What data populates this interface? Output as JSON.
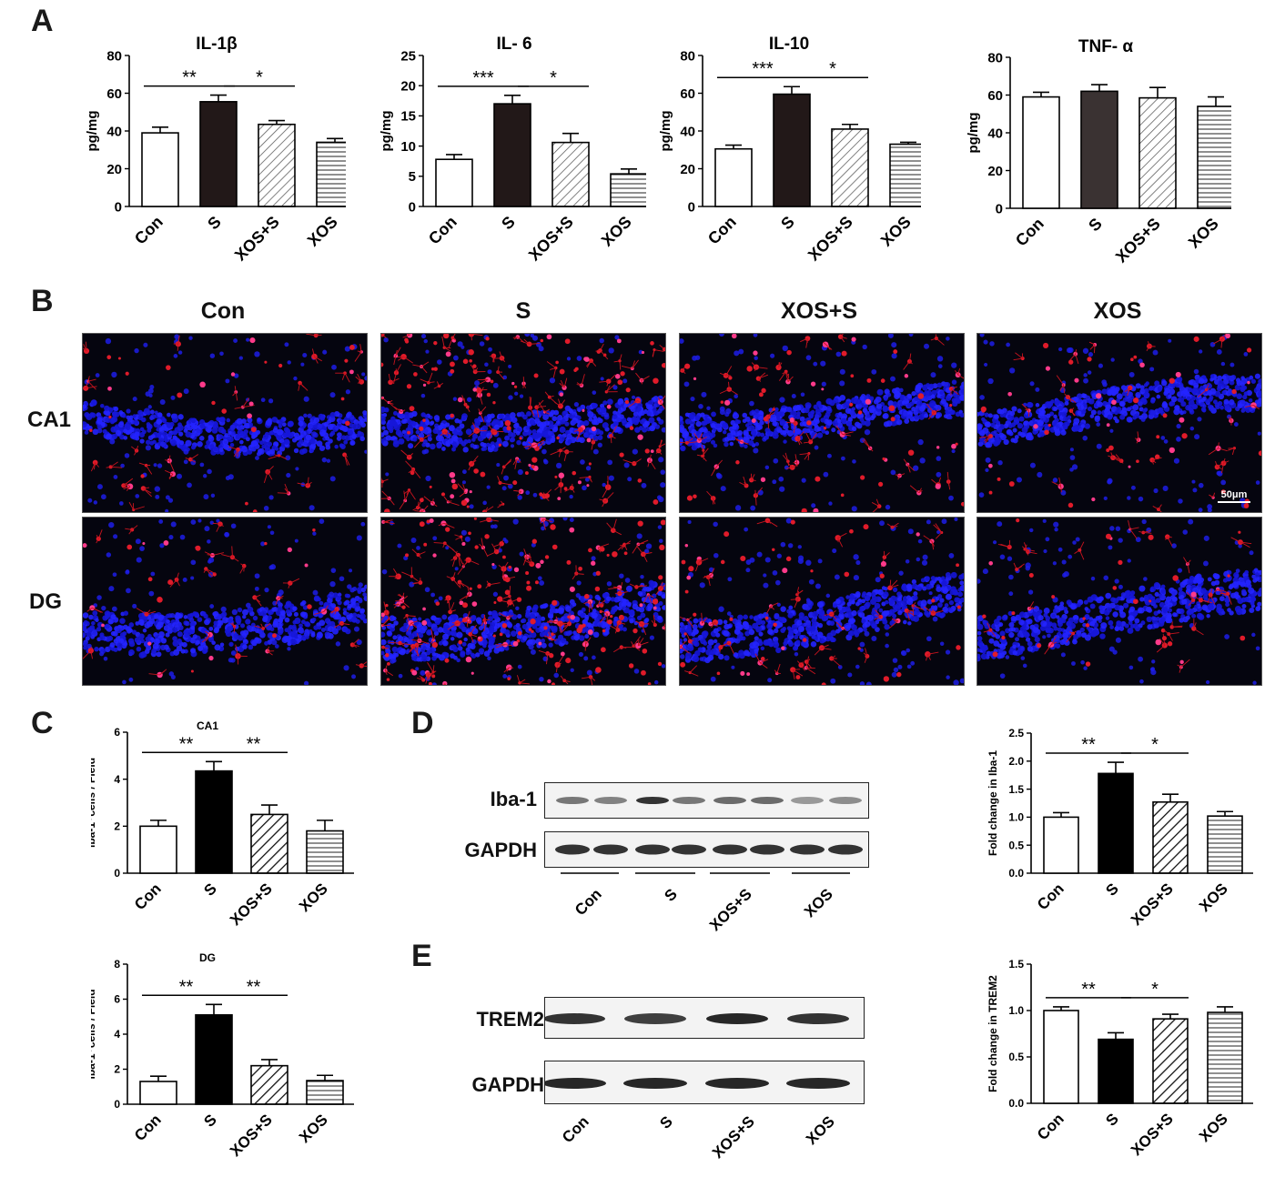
{
  "panels": {
    "a": "A",
    "b": "B",
    "c": "C",
    "d": "D",
    "e": "E"
  },
  "groups": [
    "Con",
    "S",
    "XOS+S",
    "XOS"
  ],
  "chart_data": [
    {
      "id": "il1b",
      "type": "bar",
      "title": "IL-1β",
      "ylabel": "pg/mg",
      "ylim": [
        0,
        80
      ],
      "yticks": [
        0,
        20,
        40,
        60,
        80
      ],
      "categories": [
        "Con",
        "S",
        "XOS+S",
        "XOS"
      ],
      "values": [
        39,
        55.5,
        43.5,
        34
      ],
      "errors": [
        3,
        3.5,
        2,
        2
      ],
      "fills": [
        "white",
        "#221818",
        "hatch-diag",
        "hatch-horiz"
      ],
      "sig": [
        {
          "from": 0,
          "to": 1,
          "label": "**"
        },
        {
          "from": 1,
          "to": 2,
          "label": "*"
        }
      ]
    },
    {
      "id": "il6",
      "type": "bar",
      "title": "IL- 6",
      "ylabel": "pg/mg",
      "ylim": [
        0,
        25
      ],
      "yticks": [
        0,
        5,
        10,
        15,
        20,
        25
      ],
      "categories": [
        "Con",
        "S",
        "XOS+S",
        "XOS"
      ],
      "values": [
        7.8,
        17,
        10.6,
        5.4
      ],
      "errors": [
        0.8,
        1.4,
        1.5,
        0.8
      ],
      "fills": [
        "white",
        "#221818",
        "hatch-diag",
        "hatch-horiz"
      ],
      "sig": [
        {
          "from": 0,
          "to": 1,
          "label": "***"
        },
        {
          "from": 1,
          "to": 2,
          "label": "*"
        }
      ]
    },
    {
      "id": "il10",
      "type": "bar",
      "title": "IL-10",
      "ylabel": "pg/mg",
      "ylim": [
        0,
        80
      ],
      "yticks": [
        0,
        20,
        40,
        60,
        80
      ],
      "categories": [
        "Con",
        "S",
        "XOS+S",
        "XOS"
      ],
      "values": [
        30.5,
        59.5,
        41,
        33
      ],
      "errors": [
        2,
        4,
        2.5,
        1
      ],
      "fills": [
        "white",
        "#221818",
        "hatch-diag",
        "hatch-horiz"
      ],
      "sig": [
        {
          "from": 0,
          "to": 1,
          "label": "***"
        },
        {
          "from": 1,
          "to": 2,
          "label": "*"
        }
      ]
    },
    {
      "id": "tnfa",
      "type": "bar",
      "title": "TNF- α",
      "ylabel": "pg/mg",
      "ylim": [
        0,
        80
      ],
      "yticks": [
        0,
        20,
        40,
        60,
        80
      ],
      "categories": [
        "Con",
        "S",
        "XOS+S",
        "XOS"
      ],
      "values": [
        59,
        62,
        58.5,
        54
      ],
      "errors": [
        2.5,
        3.5,
        5.5,
        5
      ],
      "fills": [
        "white",
        "#3a3232",
        "hatch-diag",
        "hatch-horiz"
      ],
      "sig": []
    },
    {
      "id": "ca1",
      "type": "bar",
      "title": "CA1",
      "ylabel": "iba-1⁺cells / Field",
      "ylim": [
        0,
        6
      ],
      "yticks": [
        0,
        2,
        4,
        6
      ],
      "categories": [
        "Con",
        "S",
        "XOS+S",
        "XOS"
      ],
      "values": [
        2,
        4.35,
        2.5,
        1.8
      ],
      "errors": [
        0.25,
        0.4,
        0.4,
        0.45
      ],
      "fills": [
        "white",
        "#000000",
        "hatch-diag-bold",
        "hatch-horiz"
      ],
      "sig": [
        {
          "from": 0,
          "to": 1,
          "label": "**"
        },
        {
          "from": 1,
          "to": 2,
          "label": "**"
        }
      ]
    },
    {
      "id": "dg",
      "type": "bar",
      "title": "DG",
      "ylabel": "iba-1⁺cells / Field",
      "ylim": [
        0,
        8
      ],
      "yticks": [
        0,
        2,
        4,
        6,
        8
      ],
      "categories": [
        "Con",
        "S",
        "XOS+S",
        "XOS"
      ],
      "values": [
        1.3,
        5.1,
        2.2,
        1.35
      ],
      "errors": [
        0.3,
        0.6,
        0.35,
        0.3
      ],
      "fills": [
        "white",
        "#000000",
        "hatch-diag-bold",
        "hatch-horiz"
      ],
      "sig": [
        {
          "from": 0,
          "to": 1,
          "label": "**"
        },
        {
          "from": 1,
          "to": 2,
          "label": "**"
        }
      ]
    },
    {
      "id": "iba1fold",
      "type": "bar",
      "title": "",
      "ylabel": "Fold change in Iba-1",
      "ylim": [
        0,
        2.5
      ],
      "yticks": [
        0.0,
        0.5,
        1.0,
        1.5,
        2.0,
        2.5
      ],
      "categories": [
        "Con",
        "S",
        "XOS+S",
        "XOS"
      ],
      "values": [
        1.0,
        1.78,
        1.27,
        1.02
      ],
      "errors": [
        0.08,
        0.2,
        0.14,
        0.08
      ],
      "fills": [
        "white",
        "#000000",
        "hatch-diag-bold",
        "hatch-horiz"
      ],
      "sig": [
        {
          "from": 0,
          "to": 1,
          "label": "**"
        },
        {
          "from": 1,
          "to": 2,
          "label": "*"
        }
      ]
    },
    {
      "id": "trem2fold",
      "type": "bar",
      "title": "",
      "ylabel": "Fold change  in TREM2",
      "ylim": [
        0,
        1.5
      ],
      "yticks": [
        0.0,
        0.5,
        1.0,
        1.5
      ],
      "categories": [
        "Con",
        "S",
        "XOS+S",
        "XOS"
      ],
      "values": [
        1.0,
        0.69,
        0.91,
        0.98
      ],
      "errors": [
        0.04,
        0.07,
        0.05,
        0.06
      ],
      "fills": [
        "white",
        "#000000",
        "hatch-diag-bold",
        "hatch-horiz"
      ],
      "sig": [
        {
          "from": 0,
          "to": 1,
          "label": "**"
        },
        {
          "from": 1,
          "to": 2,
          "label": "*"
        }
      ]
    }
  ],
  "micrographs": {
    "columns": [
      "Con",
      "S",
      "XOS+S",
      "XOS"
    ],
    "rows": [
      "CA1",
      "DG"
    ],
    "scale_bar": "50μm"
  },
  "blots": {
    "d": {
      "top": "Iba-1",
      "bottom": "GAPDH",
      "groups": [
        "Con",
        "S",
        "XOS+S",
        "XOS"
      ]
    },
    "e": {
      "top": "TREM2",
      "bottom": "GAPDH",
      "groups": [
        "Con",
        "S",
        "XOS+S",
        "XOS"
      ]
    }
  }
}
